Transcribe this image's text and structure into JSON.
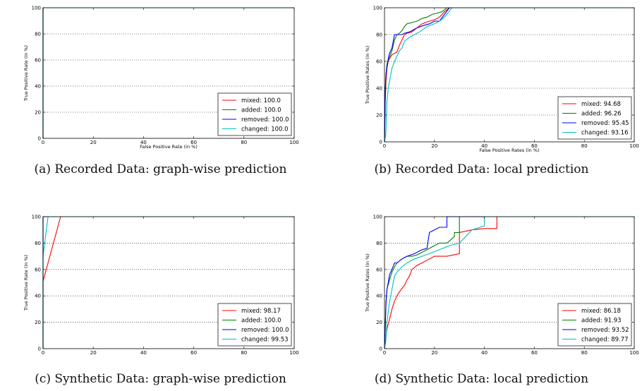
{
  "chart_data": [
    {
      "type": "line",
      "caption": "(a) Recorded Data: graph-wise prediction",
      "xlabel": "False Positive Rate (in %)",
      "ylabel": "True Positive Rate (in %)",
      "xlim": [
        0,
        100
      ],
      "ylim": [
        0,
        100
      ],
      "xticks": [
        "0",
        "20",
        "40",
        "60",
        "80",
        "100"
      ],
      "yticks": [
        "0",
        "20",
        "40",
        "60",
        "80",
        "100"
      ],
      "grid": "horizontal dotted",
      "legend_position": "lower right",
      "series": [
        {
          "name": "mixed: 100.0",
          "color": "#ff0000",
          "x": [
            0,
            0,
            100
          ],
          "y": [
            0,
            100,
            100
          ]
        },
        {
          "name": "added: 100.0",
          "color": "#008000",
          "x": [
            0,
            0,
            100
          ],
          "y": [
            0,
            100,
            100
          ]
        },
        {
          "name": "removed: 100.0",
          "color": "#0000ff",
          "x": [
            0,
            0,
            100
          ],
          "y": [
            0,
            100,
            100
          ]
        },
        {
          "name": "changed: 100.0",
          "color": "#00bfbf",
          "x": [
            0,
            0,
            100
          ],
          "y": [
            0,
            100,
            100
          ]
        }
      ]
    },
    {
      "type": "line",
      "caption": "(b) Recorded Data: local prediction",
      "xlabel": "False Positive Rates (in %)",
      "ylabel": "True Positive Rates (in %)",
      "xlim": [
        0,
        100
      ],
      "ylim": [
        0,
        100
      ],
      "xticks": [
        "0",
        "20",
        "40",
        "60",
        "80",
        "100"
      ],
      "yticks": [
        "0",
        "20",
        "40",
        "60",
        "80",
        "100"
      ],
      "grid": "horizontal dotted",
      "legend_position": "lower right",
      "series": [
        {
          "name": "mixed: 94.68",
          "color": "#ff0000",
          "x": [
            0,
            0.3,
            0.6,
            1,
            1.5,
            2,
            3,
            4,
            5,
            6,
            8,
            9,
            11,
            13,
            15,
            18,
            20,
            22,
            24,
            26,
            100
          ],
          "y": [
            0,
            30,
            45,
            55,
            60,
            62,
            65,
            66,
            67,
            72,
            80,
            81,
            82,
            85,
            88,
            90,
            91,
            93,
            97,
            100,
            100
          ]
        },
        {
          "name": "added: 96.26",
          "color": "#008000",
          "x": [
            0,
            0.3,
            0.6,
            1,
            2,
            3,
            4,
            5,
            6,
            7,
            8,
            9,
            11,
            13,
            15,
            17,
            19,
            21,
            23,
            25,
            100
          ],
          "y": [
            0,
            35,
            50,
            58,
            63,
            68,
            76,
            80,
            81,
            83,
            86,
            88,
            89,
            90,
            92,
            93,
            95,
            96,
            97,
            100,
            100
          ]
        },
        {
          "name": "removed: 95.45",
          "color": "#0000ff",
          "x": [
            0,
            0.3,
            0.6,
            1,
            1.5,
            2,
            3,
            4,
            5,
            7,
            8,
            10,
            13,
            16,
            18,
            20,
            22,
            24,
            26,
            100
          ],
          "y": [
            0,
            40,
            50,
            56,
            62,
            66,
            70,
            80,
            80,
            80,
            81,
            82,
            85,
            87,
            88,
            90,
            90,
            95,
            100,
            100
          ]
        },
        {
          "name": "changed: 93.16",
          "color": "#00bfbf",
          "x": [
            0,
            0.5,
            1,
            1.5,
            2,
            3,
            4,
            5,
            6,
            7,
            8,
            10,
            12,
            14,
            17,
            20,
            22,
            24,
            27,
            100
          ],
          "y": [
            0,
            5,
            30,
            40,
            45,
            55,
            60,
            64,
            68,
            70,
            75,
            78,
            80,
            82,
            86,
            88,
            90,
            93,
            100,
            100
          ]
        }
      ]
    },
    {
      "type": "line",
      "caption": "(c) Synthetic Data: graph-wise prediction",
      "xlabel": "False Positive Rate (in %)",
      "ylabel": "True Positive Rate (in %)",
      "xlim": [
        0,
        100
      ],
      "ylim": [
        0,
        100
      ],
      "xticks": [
        "0",
        "20",
        "40",
        "60",
        "80",
        "100"
      ],
      "yticks": [
        "0",
        "20",
        "40",
        "60",
        "80",
        "100"
      ],
      "grid": "horizontal dotted",
      "legend_position": "lower right",
      "series": [
        {
          "name": "mixed: 98.17",
          "color": "#ff0000",
          "x": [
            0,
            0,
            7,
            100
          ],
          "y": [
            0,
            51,
            100,
            100
          ]
        },
        {
          "name": "added: 100.0",
          "color": "#008000",
          "x": [
            0,
            0,
            100
          ],
          "y": [
            0,
            100,
            100
          ]
        },
        {
          "name": "removed: 100.0",
          "color": "#0000ff",
          "x": [
            0,
            0,
            100
          ],
          "y": [
            0,
            100,
            100
          ]
        },
        {
          "name": "changed: 99.53",
          "color": "#00bfbf",
          "x": [
            0,
            0,
            2,
            100
          ],
          "y": [
            0,
            70,
            100,
            100
          ]
        }
      ]
    },
    {
      "type": "line",
      "caption": "(d) Synthetic Data: local prediction",
      "xlabel": "False Positive Rates (in %)",
      "ylabel": "True Positive Rates (in %)",
      "xlim": [
        0,
        100
      ],
      "ylim": [
        0,
        100
      ],
      "xticks": [
        "0",
        "20",
        "40",
        "60",
        "80",
        "100"
      ],
      "yticks": [
        "0",
        "20",
        "40",
        "60",
        "80",
        "100"
      ],
      "grid": "horizontal dotted",
      "legend_position": "lower right",
      "series": [
        {
          "name": "mixed: 86.18",
          "color": "#ff0000",
          "x": [
            0,
            1,
            2,
            3,
            4,
            5,
            6,
            8,
            9,
            10,
            11,
            13,
            15,
            18,
            20,
            25,
            30,
            30,
            35,
            40,
            45,
            45,
            100
          ],
          "y": [
            0,
            15,
            22,
            30,
            36,
            40,
            43,
            48,
            52,
            55,
            60,
            63,
            65,
            68,
            70,
            70,
            72,
            88,
            90,
            91,
            91,
            100,
            100
          ]
        },
        {
          "name": "added: 91.93",
          "color": "#008000",
          "x": [
            0,
            0.5,
            1,
            2,
            3,
            4,
            5,
            7,
            9,
            11,
            13,
            15,
            17,
            20,
            22,
            25,
            28,
            28,
            30,
            30,
            100
          ],
          "y": [
            0,
            30,
            45,
            52,
            58,
            62,
            65,
            68,
            70,
            70,
            71,
            73,
            75,
            78,
            80,
            80,
            85,
            88,
            88,
            100,
            100
          ]
        },
        {
          "name": "removed: 93.52",
          "color": "#0000ff",
          "x": [
            0,
            0.3,
            0.6,
            1,
            1.5,
            2,
            3,
            4,
            5,
            7,
            9,
            12,
            15,
            17,
            18,
            22,
            25,
            25,
            100
          ],
          "y": [
            0,
            15,
            35,
            45,
            50,
            56,
            60,
            65,
            65,
            68,
            70,
            72,
            75,
            76,
            88,
            92,
            92,
            100,
            100
          ]
        },
        {
          "name": "changed: 89.77",
          "color": "#00bfbf",
          "x": [
            0,
            0.5,
            1,
            2,
            3,
            4,
            5,
            7,
            9,
            12,
            15,
            18,
            22,
            26,
            30,
            35,
            40,
            40,
            100
          ],
          "y": [
            0,
            5,
            20,
            35,
            45,
            55,
            58,
            62,
            65,
            68,
            70,
            72,
            75,
            78,
            80,
            90,
            93,
            100,
            100
          ]
        }
      ]
    }
  ]
}
